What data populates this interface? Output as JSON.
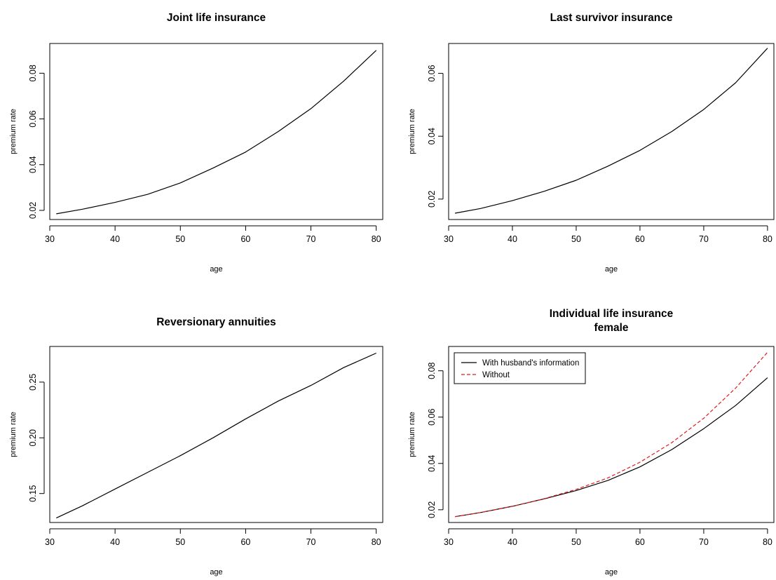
{
  "chart_data": [
    {
      "type": "line",
      "title": "Joint life insurance",
      "xlabel": "age",
      "ylabel": "premium rate",
      "xlim": [
        30,
        81
      ],
      "ylim": [
        0.016,
        0.093
      ],
      "x_ticks": [
        30,
        40,
        50,
        60,
        70,
        80
      ],
      "y_ticks": [
        0.02,
        0.04,
        0.06,
        0.08
      ],
      "x_tick_labels": [
        "30",
        "40",
        "50",
        "60",
        "70",
        "80"
      ],
      "y_tick_labels": [
        "0.02",
        "0.04",
        "0.06",
        "0.08"
      ],
      "grid": false,
      "series": [
        {
          "color": "#000000",
          "dash": "solid",
          "x": [
            31,
            35,
            40,
            45,
            50,
            55,
            60,
            65,
            70,
            75,
            80
          ],
          "y": [
            0.0185,
            0.0205,
            0.0235,
            0.027,
            0.032,
            0.0385,
            0.0455,
            0.0545,
            0.0645,
            0.0765,
            0.09
          ]
        }
      ]
    },
    {
      "type": "line",
      "title": "Last survivor insurance",
      "xlabel": "age",
      "ylabel": "premium rate",
      "xlim": [
        30,
        81
      ],
      "ylim": [
        0.0135,
        0.0695
      ],
      "x_ticks": [
        30,
        40,
        50,
        60,
        70,
        80
      ],
      "y_ticks": [
        0.02,
        0.04,
        0.06
      ],
      "x_tick_labels": [
        "30",
        "40",
        "50",
        "60",
        "70",
        "80"
      ],
      "y_tick_labels": [
        "0.02",
        "0.04",
        "0.06"
      ],
      "grid": false,
      "series": [
        {
          "color": "#000000",
          "dash": "solid",
          "x": [
            31,
            35,
            40,
            45,
            50,
            55,
            60,
            65,
            70,
            75,
            80
          ],
          "y": [
            0.0155,
            0.017,
            0.0195,
            0.0225,
            0.026,
            0.0305,
            0.0355,
            0.0415,
            0.0485,
            0.057,
            0.068
          ]
        }
      ]
    },
    {
      "type": "line",
      "title": "Reversionary annuities",
      "xlabel": "age",
      "ylabel": "premium rate",
      "xlim": [
        30,
        81
      ],
      "ylim": [
        0.124,
        0.282
      ],
      "x_ticks": [
        30,
        40,
        50,
        60,
        70,
        80
      ],
      "y_ticks": [
        0.15,
        0.2,
        0.25
      ],
      "x_tick_labels": [
        "30",
        "40",
        "50",
        "60",
        "70",
        "80"
      ],
      "y_tick_labels": [
        "0.15",
        "0.20",
        "0.25"
      ],
      "grid": false,
      "series": [
        {
          "color": "#000000",
          "dash": "solid",
          "x": [
            31,
            35,
            40,
            45,
            50,
            55,
            60,
            65,
            70,
            75,
            80
          ],
          "y": [
            0.128,
            0.139,
            0.154,
            0.169,
            0.184,
            0.2,
            0.217,
            0.233,
            0.247,
            0.263,
            0.276
          ]
        }
      ]
    },
    {
      "type": "line",
      "title": "Individual life insurance",
      "subtitle": "female",
      "xlabel": "age",
      "ylabel": "premium rate",
      "xlim": [
        30,
        81
      ],
      "ylim": [
        0.0145,
        0.0905
      ],
      "x_ticks": [
        30,
        40,
        50,
        60,
        70,
        80
      ],
      "y_ticks": [
        0.02,
        0.04,
        0.06,
        0.08
      ],
      "x_tick_labels": [
        "30",
        "40",
        "50",
        "60",
        "70",
        "80"
      ],
      "y_tick_labels": [
        "0.02",
        "0.04",
        "0.06",
        "0.08"
      ],
      "grid": false,
      "legend": "top-left",
      "series": [
        {
          "name": "With husband's information",
          "color": "#000000",
          "dash": "solid",
          "x": [
            31,
            35,
            40,
            45,
            50,
            55,
            60,
            65,
            70,
            75,
            80
          ],
          "y": [
            0.017,
            0.0188,
            0.0215,
            0.0247,
            0.0283,
            0.0327,
            0.0385,
            0.046,
            0.055,
            0.065,
            0.077
          ]
        },
        {
          "name": "Without",
          "color": "#e31a1c",
          "dash": "dashed",
          "x": [
            31,
            35,
            40,
            45,
            50,
            55,
            60,
            65,
            70,
            75,
            80
          ],
          "y": [
            0.017,
            0.0188,
            0.0215,
            0.0248,
            0.0288,
            0.0338,
            0.0405,
            0.049,
            0.0595,
            0.0725,
            0.088
          ]
        }
      ]
    }
  ]
}
